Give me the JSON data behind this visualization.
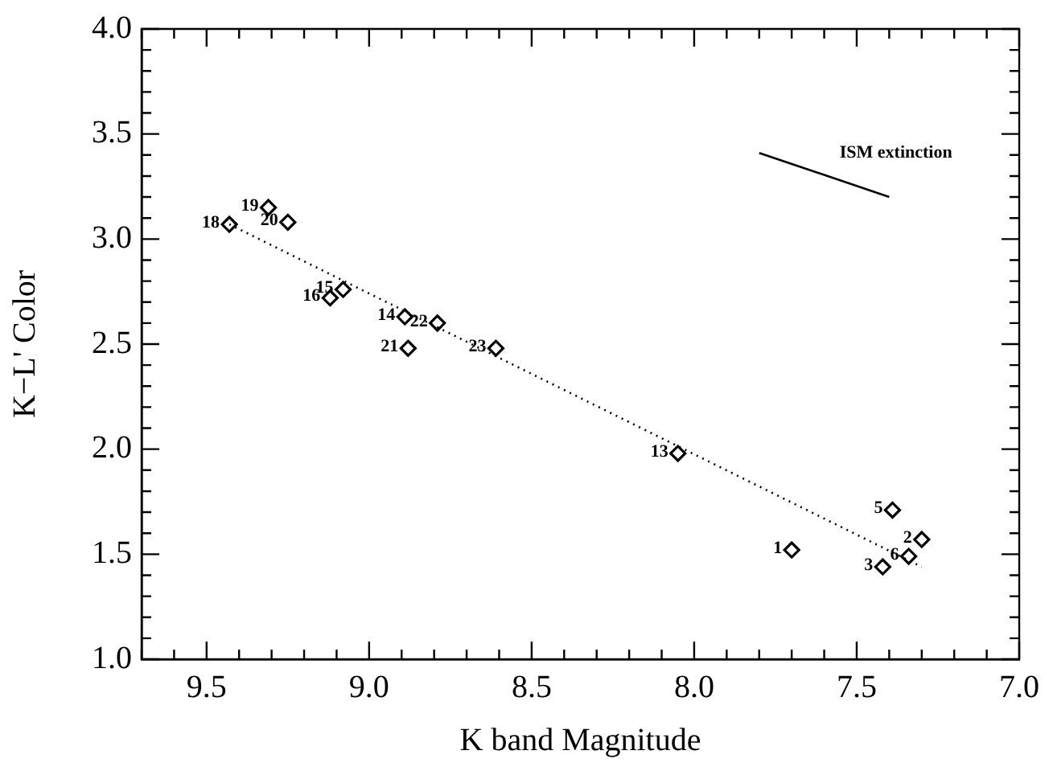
{
  "chart_data": {
    "type": "scatter",
    "xlabel": "K band Magnitude",
    "ylabel": "K−L' Color",
    "xlim": [
      9.7,
      7.0
    ],
    "xticks": [
      {
        "value": 9.7,
        "label": null
      },
      {
        "value": 9.6,
        "label": null
      },
      9.5,
      {
        "value": 9.4,
        "label": null
      },
      {
        "value": 9.3,
        "label": null
      },
      {
        "value": 9.2,
        "label": null
      },
      {
        "value": 9.1,
        "label": null
      },
      {
        "value": 9.0,
        "label": "9.0"
      },
      {
        "value": 8.9,
        "label": null
      },
      {
        "value": 8.8,
        "label": null
      },
      {
        "value": 8.7,
        "label": null
      },
      {
        "value": 8.6,
        "label": null
      },
      8.5,
      {
        "value": 8.4,
        "label": null
      },
      {
        "value": 8.3,
        "label": null
      },
      {
        "value": 8.2,
        "label": null
      },
      {
        "value": 8.1,
        "label": null
      },
      {
        "value": 8.0,
        "label": "8.0"
      },
      {
        "value": 7.9,
        "label": null
      },
      {
        "value": 7.8,
        "label": null
      },
      {
        "value": 7.7,
        "label": null
      },
      {
        "value": 7.6,
        "label": null
      },
      7.5,
      {
        "value": 7.4,
        "label": null
      },
      {
        "value": 7.3,
        "label": null
      },
      {
        "value": 7.2,
        "label": null
      },
      {
        "value": 7.1,
        "label": null
      },
      {
        "value": 7.0,
        "label": "7.0"
      }
    ],
    "ylim": [
      1.0,
      4.0
    ],
    "yticks": [
      {
        "value": 1.0,
        "label": "1.0"
      },
      {
        "value": 1.1,
        "label": null
      },
      {
        "value": 1.2,
        "label": null
      },
      {
        "value": 1.3,
        "label": null
      },
      {
        "value": 1.4,
        "label": null
      },
      1.5,
      {
        "value": 1.6,
        "label": null
      },
      {
        "value": 1.7,
        "label": null
      },
      {
        "value": 1.8,
        "label": null
      },
      {
        "value": 1.9,
        "label": null
      },
      {
        "value": 2.0,
        "label": "2.0"
      },
      {
        "value": 2.1,
        "label": null
      },
      {
        "value": 2.2,
        "label": null
      },
      {
        "value": 2.3,
        "label": null
      },
      {
        "value": 2.4,
        "label": null
      },
      2.5,
      {
        "value": 2.6,
        "label": null
      },
      {
        "value": 2.7,
        "label": null
      },
      {
        "value": 2.8,
        "label": null
      },
      {
        "value": 2.9,
        "label": null
      },
      {
        "value": 3.0,
        "label": "3.0"
      },
      {
        "value": 3.1,
        "label": null
      },
      {
        "value": 3.2,
        "label": null
      },
      {
        "value": 3.3,
        "label": null
      },
      {
        "value": 3.4,
        "label": null
      },
      3.5,
      {
        "value": 3.6,
        "label": null
      },
      {
        "value": 3.7,
        "label": null
      },
      {
        "value": 3.8,
        "label": null
      },
      {
        "value": 3.9,
        "label": null
      },
      {
        "value": 4.0,
        "label": "4.0"
      }
    ],
    "grid": false,
    "legend": false,
    "marker": "diamond",
    "annotations": [
      {
        "text": "18",
        "x": 9.43,
        "y": 3.07
      },
      {
        "text": "19",
        "x": 9.31,
        "y": 3.15
      },
      {
        "text": "20",
        "x": 9.25,
        "y": 3.08
      },
      {
        "text": "15",
        "x": 9.08,
        "y": 2.76
      },
      {
        "text": "16",
        "x": 9.12,
        "y": 2.72
      },
      {
        "text": "14",
        "x": 8.89,
        "y": 2.63
      },
      {
        "text": "22",
        "x": 8.79,
        "y": 2.6
      },
      {
        "text": "21",
        "x": 8.88,
        "y": 2.48
      },
      {
        "text": "23",
        "x": 8.61,
        "y": 2.48
      },
      {
        "text": "13",
        "x": 8.05,
        "y": 1.98
      },
      {
        "text": "5",
        "x": 7.39,
        "y": 1.71
      },
      {
        "text": "2",
        "x": 7.3,
        "y": 1.57
      },
      {
        "text": "1",
        "x": 7.7,
        "y": 1.52
      },
      {
        "text": "6",
        "x": 7.34,
        "y": 1.49
      },
      {
        "text": "3",
        "x": 7.42,
        "y": 1.44
      }
    ],
    "series": [
      {
        "color": "#000000",
        "x": [
          9.43,
          9.31,
          9.25,
          9.08,
          9.12,
          8.89,
          8.79,
          8.88,
          8.61,
          8.05,
          7.39,
          7.3,
          7.7,
          7.34,
          7.42
        ],
        "values": [
          3.07,
          3.15,
          3.08,
          2.76,
          2.72,
          2.63,
          2.6,
          2.48,
          2.48,
          1.98,
          1.71,
          1.57,
          1.52,
          1.49,
          1.44
        ]
      },
      {
        "type": "line",
        "color": "#000000",
        "marker": "none",
        "line_style": "dotted",
        "x": [
          9.43,
          7.3
        ],
        "values": [
          3.07,
          1.44
        ]
      },
      {
        "type": "line",
        "name": "ISM extinction",
        "color": "#000000",
        "marker": "none",
        "line_style": "solid",
        "x": [
          7.8,
          7.4
        ],
        "values": [
          3.41,
          3.2
        ]
      }
    ]
  }
}
